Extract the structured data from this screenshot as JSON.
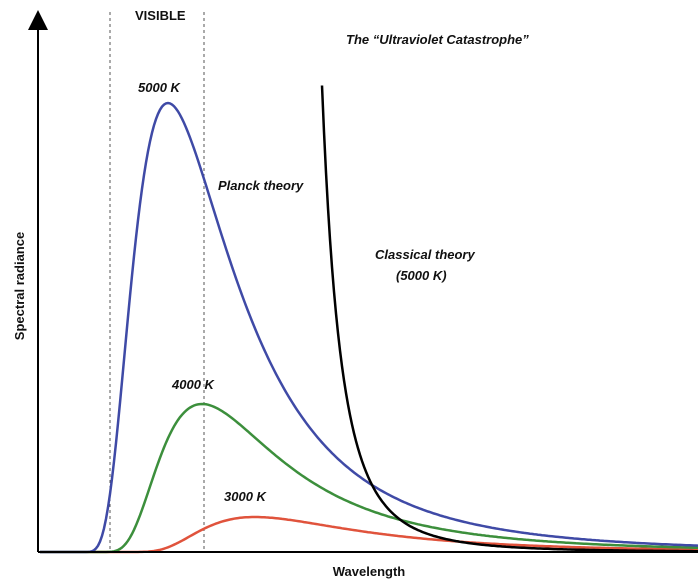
{
  "chart_data": {
    "type": "line",
    "title": "",
    "xlabel": "Wavelength",
    "ylabel": "Spectral radiance",
    "ticks": "none",
    "grid": false,
    "region_label": "VISIBLE",
    "annotations": {
      "catastrophe": "The “Ultraviolet Catastrophe”",
      "planck": "Planck theory",
      "classical_line1": "Classical theory",
      "classical_line2": "(5000 K)"
    },
    "series": [
      {
        "name": "5000 K",
        "color": "#3f4aa6"
      },
      {
        "name": "4000 K",
        "color": "#3c8f3c"
      },
      {
        "name": "3000 K",
        "color": "#e0533c"
      },
      {
        "name": "Classical theory (5000 K)",
        "color": "#000000"
      }
    ]
  }
}
